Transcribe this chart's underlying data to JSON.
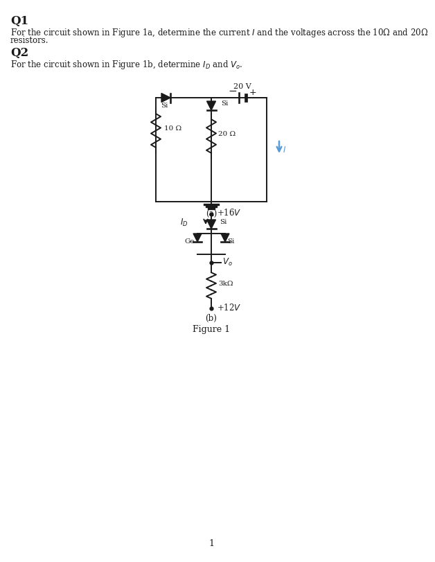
{
  "bg_color": "#ffffff",
  "text_color": "#1a1a1a",
  "q1_title": "Q1",
  "q1_line1": "For the circuit shown in Figure 1a, determine the current ",
  "q1_line1b": "I",
  "q1_line1c": " and the voltages across the 10Ω and 20Ω",
  "q1_line2": "resistors.",
  "q2_title": "Q2",
  "q2_line1": "For the circuit shown in Figure 1b, determine ",
  "q2_line1b": "I",
  "q2_line1c": "D",
  "q2_line1d": " and ",
  "q2_line1e": "V",
  "q2_line1f": "o",
  "q2_line1g": ".",
  "fig_label_a": "(a)",
  "fig_label_b": "(b)",
  "fig_caption": "Figure 1",
  "page_number": "1",
  "current_color": "#5b9bd5",
  "black": "#1a1a1a",
  "circuit_a": {
    "battery_label": "20 V",
    "resistor1_label": "10 Ω",
    "resistor2_label": "20 Ω",
    "diode1_label": "Si",
    "diode2_label": "Si"
  },
  "circuit_b": {
    "v_top_label": "+16V",
    "diode1_label": "Si",
    "diode2_label": "Ge",
    "diode3_label": "Si",
    "resistor_label": "3kΩ",
    "v_bot_label": "+12V"
  }
}
